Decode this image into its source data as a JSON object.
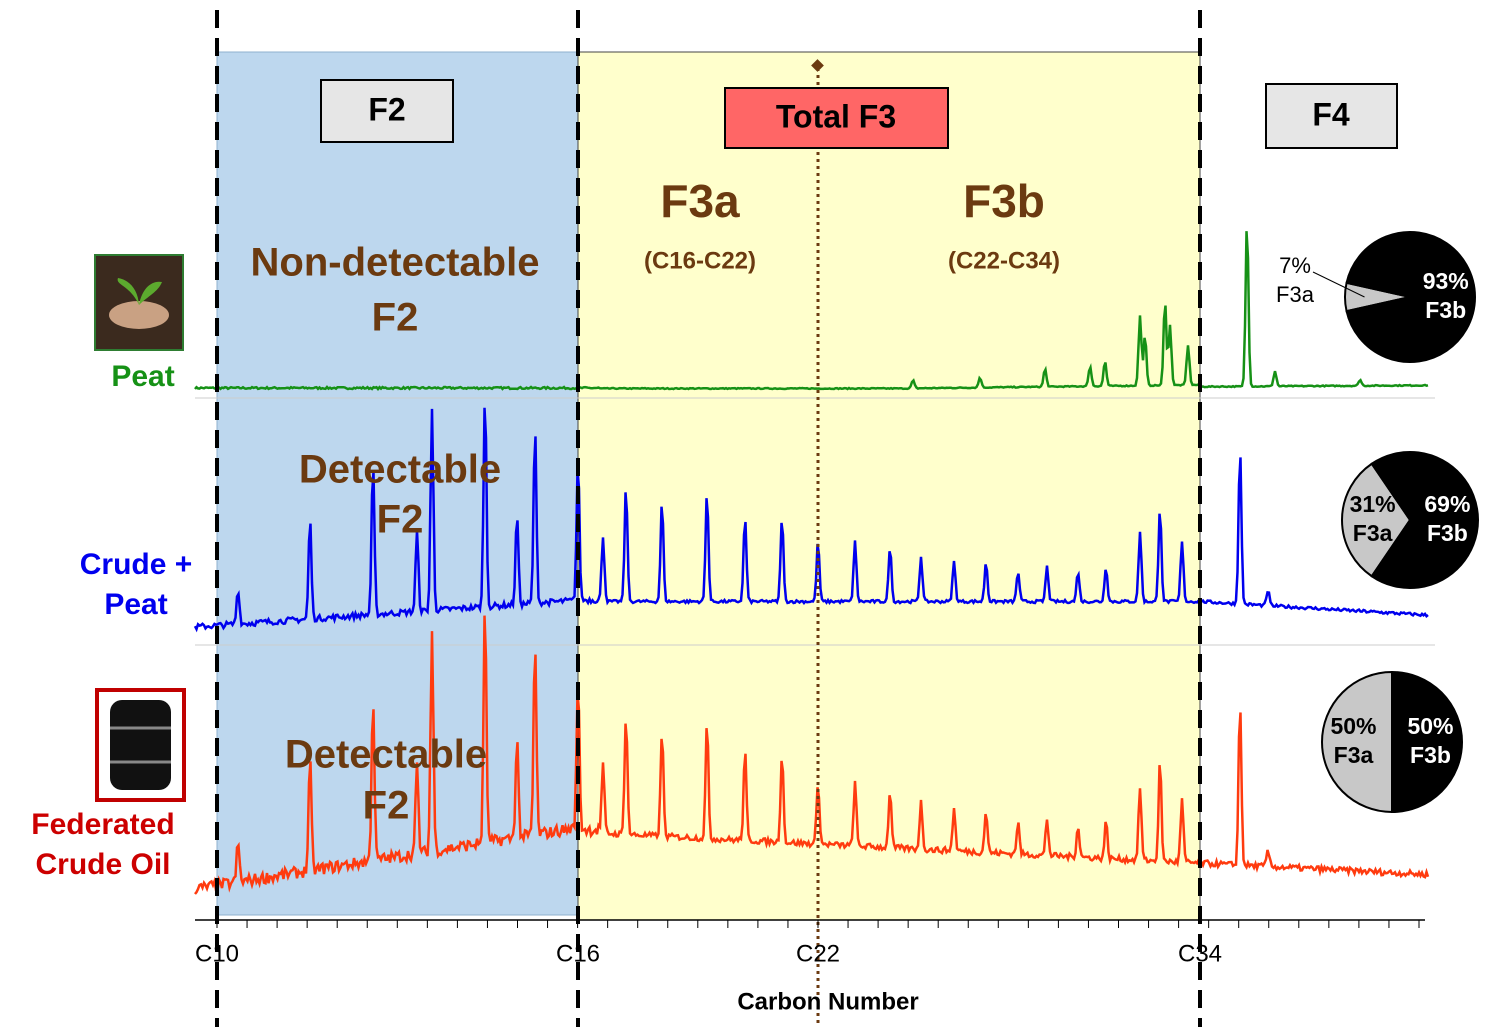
{
  "header": {
    "f2": "F2",
    "total_f3": "Total F3",
    "f4": "F4"
  },
  "regions": {
    "f3a": "F3a",
    "f3a_range": "(C16-C22)",
    "f3b": "F3b",
    "f3b_range": "(C22-C34)"
  },
  "samples": [
    {
      "label": [
        "Peat"
      ],
      "f2_note": [
        "Non-detectable",
        "F2"
      ],
      "pie": {
        "names": [
          "F3a",
          "F3b"
        ],
        "values": [
          7,
          93
        ],
        "value_labels": [
          "7%",
          "93%"
        ]
      }
    },
    {
      "label": [
        "Crude +",
        "Peat"
      ],
      "f2_note": [
        "Detectable",
        "F2"
      ],
      "pie": {
        "names": [
          "F3a",
          "F3b"
        ],
        "values": [
          31,
          69
        ],
        "value_labels": [
          "31%",
          "69%"
        ]
      }
    },
    {
      "label": [
        "Federated",
        "Crude Oil"
      ],
      "f2_note": [
        "Detectable",
        "F2"
      ],
      "pie": {
        "names": [
          "F3a",
          "F3b"
        ],
        "values": [
          50,
          50
        ],
        "value_labels": [
          "50%",
          "50%"
        ]
      }
    }
  ],
  "axis": {
    "title": "Carbon Number",
    "ticks": [
      "C10",
      "C16",
      "C22",
      "C34"
    ]
  }
}
